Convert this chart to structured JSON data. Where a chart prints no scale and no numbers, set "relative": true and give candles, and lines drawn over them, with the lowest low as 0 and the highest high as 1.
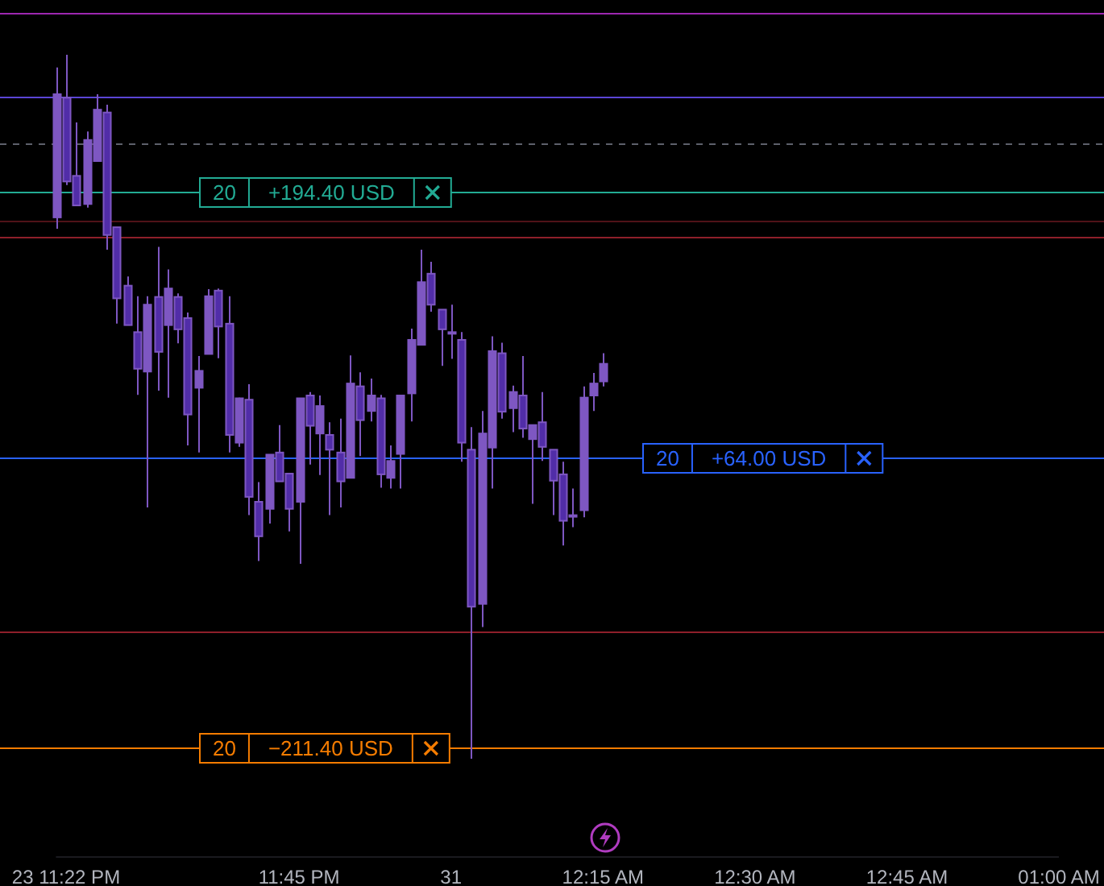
{
  "chart_data": {
    "type": "candlestick",
    "relative": true,
    "color": "#7e57c2",
    "categories": [
      null,
      "23 11:22 PM",
      null,
      null,
      null,
      null,
      null,
      null,
      null,
      null,
      null,
      null,
      null,
      null,
      null,
      null,
      null,
      null,
      null,
      null,
      null,
      null,
      null,
      null,
      "11:45 PM",
      null,
      null,
      null,
      null,
      null,
      null,
      null,
      null,
      null,
      null,
      null,
      null,
      null,
      null,
      "31",
      null,
      null,
      null,
      null,
      null,
      null,
      null,
      null,
      null,
      null,
      null,
      null,
      null,
      null,
      "12:15 AM",
      null,
      null,
      null,
      null,
      null,
      null,
      null,
      null,
      null,
      null,
      null,
      null,
      null,
      null,
      "12:30 AM",
      null,
      null,
      null,
      null,
      null,
      null,
      null,
      null,
      null,
      null,
      null,
      null,
      null,
      null,
      "12:45 AM",
      null,
      null,
      null,
      null,
      null,
      null,
      null,
      null,
      null,
      null,
      null,
      null,
      null,
      null,
      "01:00 AM"
    ],
    "ohlc": [
      [
        0.769,
        0.982,
        0.753,
        0.944
      ],
      [
        0.939,
        1.0,
        0.815,
        0.82
      ],
      [
        0.828,
        0.904,
        0.785,
        0.786
      ],
      [
        0.788,
        0.891,
        0.783,
        0.879
      ],
      [
        0.849,
        0.944,
        0.849,
        0.922
      ],
      [
        0.918,
        0.929,
        0.723,
        0.744
      ],
      [
        0.755,
        0.755,
        0.618,
        0.654
      ],
      [
        0.672,
        0.685,
        0.616,
        0.616
      ],
      [
        0.606,
        0.657,
        0.517,
        0.554
      ],
      [
        0.55,
        0.657,
        0.357,
        0.645
      ],
      [
        0.656,
        0.727,
        0.523,
        0.578
      ],
      [
        0.616,
        0.695,
        0.513,
        0.668
      ],
      [
        0.656,
        0.661,
        0.59,
        0.61
      ],
      [
        0.626,
        0.634,
        0.445,
        0.489
      ],
      [
        0.527,
        0.572,
        0.435,
        0.551
      ],
      [
        0.575,
        0.667,
        0.575,
        0.657
      ],
      [
        0.665,
        0.668,
        0.569,
        0.614
      ],
      [
        0.618,
        0.657,
        0.435,
        0.46
      ],
      [
        0.449,
        0.513,
        0.443,
        0.512
      ],
      [
        0.51,
        0.532,
        0.346,
        0.372
      ],
      [
        0.365,
        0.393,
        0.281,
        0.316
      ],
      [
        0.355,
        0.432,
        0.334,
        0.432
      ],
      [
        0.435,
        0.474,
        0.394,
        0.394
      ],
      [
        0.405,
        0.405,
        0.323,
        0.355
      ],
      [
        0.365,
        0.512,
        0.277,
        0.512
      ],
      [
        0.516,
        0.521,
        0.418,
        0.473
      ],
      [
        0.462,
        0.516,
        0.403,
        0.501
      ],
      [
        0.46,
        0.478,
        0.346,
        0.439
      ],
      [
        0.435,
        0.483,
        0.357,
        0.394
      ],
      [
        0.399,
        0.573,
        0.399,
        0.533
      ],
      [
        0.529,
        0.549,
        0.43,
        0.481
      ],
      [
        0.494,
        0.54,
        0.479,
        0.516
      ],
      [
        0.512,
        0.517,
        0.385,
        0.404
      ],
      [
        0.399,
        0.445,
        0.384,
        0.423
      ],
      [
        0.433,
        0.516,
        0.384,
        0.516
      ],
      [
        0.519,
        0.611,
        0.479,
        0.595
      ],
      [
        0.588,
        0.723,
        0.588,
        0.677
      ],
      [
        0.689,
        0.706,
        0.635,
        0.645
      ],
      [
        0.638,
        0.638,
        0.558,
        0.61
      ],
      [
        0.606,
        0.645,
        0.568,
        0.606
      ],
      [
        0.595,
        0.606,
        0.422,
        0.449
      ],
      [
        0.439,
        0.471,
        0.0,
        0.216
      ],
      [
        0.22,
        0.494,
        0.187,
        0.462
      ],
      [
        0.442,
        0.6,
        0.384,
        0.579
      ],
      [
        0.576,
        0.591,
        0.483,
        0.493
      ],
      [
        0.498,
        0.53,
        0.464,
        0.521
      ],
      [
        0.516,
        0.572,
        0.456,
        0.469
      ],
      [
        0.454,
        0.474,
        0.362,
        0.474
      ],
      [
        0.478,
        0.521,
        0.423,
        0.443
      ],
      [
        0.439,
        0.439,
        0.346,
        0.395
      ],
      [
        0.404,
        0.422,
        0.303,
        0.338
      ],
      [
        0.346,
        0.384,
        0.329,
        0.346
      ],
      [
        0.353,
        0.529,
        0.343,
        0.513
      ],
      [
        0.516,
        0.548,
        0.494,
        0.533
      ],
      [
        0.536,
        0.576,
        0.529,
        0.561
      ],
      null,
      null,
      null,
      null,
      null,
      null,
      null,
      null,
      null,
      null,
      null,
      null,
      null,
      null,
      null,
      null,
      null,
      null,
      null,
      null,
      null,
      null,
      null,
      null,
      null,
      null,
      null,
      null,
      null,
      null,
      null,
      null,
      null,
      null,
      null,
      null,
      null,
      null,
      null,
      null,
      null,
      null,
      null,
      null,
      null
    ],
    "colors": [
      "#7e57c2",
      "#512da8",
      "#512da8",
      "#7e57c2",
      "#7e57c2",
      "#512da8",
      "#512da8",
      "#512da8",
      "#512da8",
      "#7e57c2",
      "#512da8",
      "#7e57c2",
      "#512da8",
      "#512da8",
      "#7e57c2",
      "#7e57c2",
      "#512da8",
      "#512da8",
      "#7e57c2",
      "#512da8",
      "#512da8",
      "#7e57c2",
      "#512da8",
      "#512da8",
      "#7e57c2",
      "#512da8",
      "#7e57c2",
      "#512da8",
      "#512da8",
      "#7e57c2",
      "#512da8",
      "#7e57c2",
      "#512da8",
      "#7e57c2",
      "#7e57c2",
      "#7e57c2",
      "#7e57c2",
      "#512da8",
      "#512da8",
      "#7e57c2",
      "#512da8",
      "#512da8",
      "#7e57c2",
      "#7e57c2",
      "#512da8",
      "#7e57c2",
      "#512da8",
      "#7e57c2",
      "#512da8",
      "#512da8",
      "#512da8",
      "#7e57c2",
      "#7e57c2",
      "#7e57c2",
      "#7e57c2",
      null,
      null,
      null,
      null,
      null,
      null,
      null,
      null,
      null,
      null,
      null,
      null,
      null,
      null,
      null,
      null,
      null,
      null,
      null,
      null,
      null,
      null,
      null,
      null,
      null,
      null,
      null,
      null,
      null,
      null,
      null,
      null,
      null,
      null,
      null,
      null,
      null,
      null,
      null,
      null,
      null,
      null,
      null,
      null,
      null
    ],
    "ref_lines": [
      {
        "axis": "y",
        "value": 1.059,
        "color": "#9c27b0"
      },
      {
        "axis": "y",
        "value": 0.941,
        "color": "#5b45d6"
      },
      {
        "axis": "y",
        "value": 0.873,
        "color": "#5d606b",
        "line_style": "dashed"
      },
      {
        "axis": "y",
        "value": 0.805,
        "label": "+194.40 USD",
        "color": "#22ab94"
      },
      {
        "axis": "y",
        "value": 0.764,
        "color": "#4f1218"
      },
      {
        "axis": "y",
        "value": 0.741,
        "color": "#8e1f2a"
      },
      {
        "axis": "y",
        "value": 0.428,
        "label": "+64.00 USD",
        "color": "#2962ff"
      },
      {
        "axis": "y",
        "value": 0.18,
        "color": "#8e1f2a"
      },
      {
        "axis": "y",
        "value": 0.016,
        "label": "−211.40 USD",
        "color": "#f57c00"
      }
    ],
    "annotations": [
      "20",
      "20",
      "20"
    ]
  }
}
